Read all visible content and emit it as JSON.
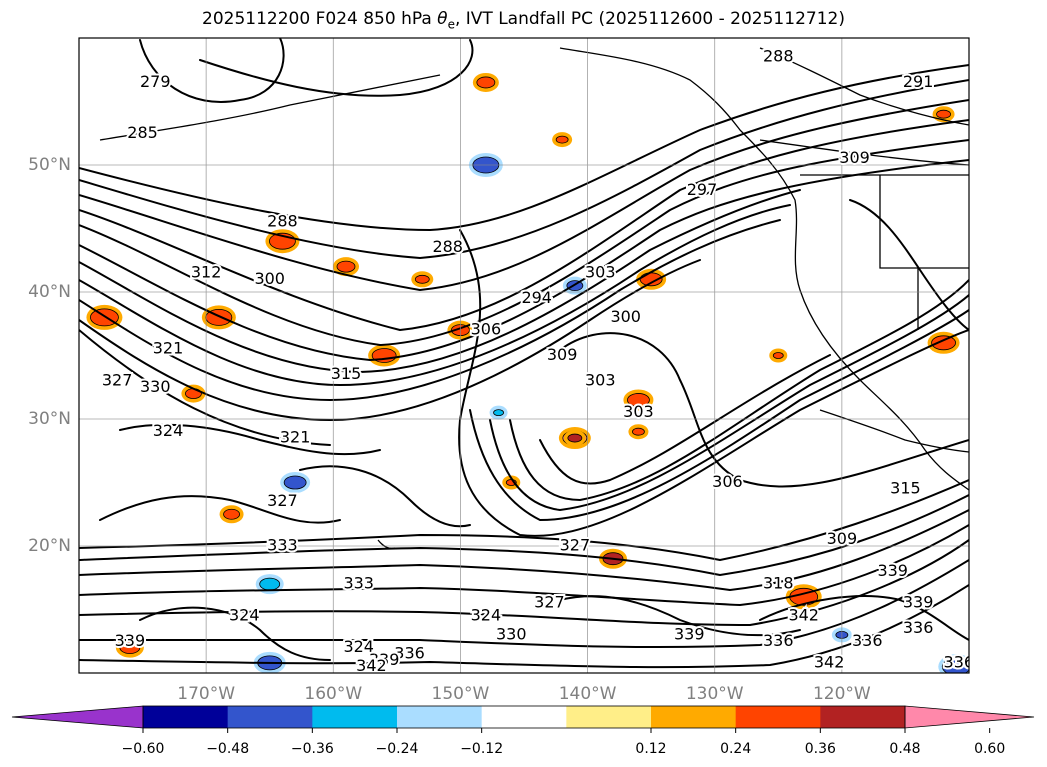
{
  "title_main": "2025112200 F024 850 hPa ",
  "title_sym": "θ",
  "title_sub": "e",
  "title_rest": ", IVT Landfall PC (2025112600 - 2025112712)",
  "chart_data": {
    "type": "heatmap",
    "title": "2025112200 F024 850 hPa θe, IVT Landfall PC (2025112600 - 2025112712)",
    "projection": "PlateCarree",
    "lon_range": [
      -180,
      -110
    ],
    "lat_range": [
      10,
      60
    ],
    "lat_ticks": [
      {
        "value": 50,
        "label": "50°N"
      },
      {
        "value": 40,
        "label": "40°N"
      },
      {
        "value": 30,
        "label": "30°N"
      },
      {
        "value": 20,
        "label": "20°N"
      }
    ],
    "lon_ticks": [
      {
        "value": -170,
        "label": "170°W"
      },
      {
        "value": -160,
        "label": "160°W"
      },
      {
        "value": -150,
        "label": "150°W"
      },
      {
        "value": -140,
        "label": "140°W"
      },
      {
        "value": -130,
        "label": "130°W"
      },
      {
        "value": -120,
        "label": "120°W"
      }
    ],
    "grid": true,
    "colorbar": {
      "ticks": [
        {
          "value": -0.6,
          "label": "−0.60"
        },
        {
          "value": -0.48,
          "label": "−0.48"
        },
        {
          "value": -0.36,
          "label": "−0.36"
        },
        {
          "value": -0.24,
          "label": "−0.24"
        },
        {
          "value": -0.12,
          "label": "−0.12"
        },
        {
          "value": 0.12,
          "label": "0.12"
        },
        {
          "value": 0.24,
          "label": "0.24"
        },
        {
          "value": 0.36,
          "label": "0.36"
        },
        {
          "value": 0.48,
          "label": "0.48"
        },
        {
          "value": 0.6,
          "label": "0.60"
        }
      ],
      "colors": [
        "#9933cc",
        "#000099",
        "#3355cc",
        "#00bbee",
        "#aaddff",
        "#ffffff",
        "#ffee88",
        "#ffaa00",
        "#ff4400",
        "#b22222",
        "#ff88aa"
      ],
      "extend": "both"
    },
    "theta_e_contours": [
      {
        "level": "279",
        "lon": -174,
        "lat": 56.5
      },
      {
        "level": "285",
        "lon": -175,
        "lat": 52.5
      },
      {
        "level": "288",
        "lon": -164,
        "lat": 45.5
      },
      {
        "level": "288",
        "lon": -151,
        "lat": 43.5
      },
      {
        "level": "288",
        "lon": -125,
        "lat": 58.5
      },
      {
        "level": "291",
        "lon": -114,
        "lat": 56.5
      },
      {
        "level": "294",
        "lon": -144,
        "lat": 39.5
      },
      {
        "level": "297",
        "lon": -131,
        "lat": 48
      },
      {
        "level": "300",
        "lon": -165,
        "lat": 41
      },
      {
        "level": "300",
        "lon": -137,
        "lat": 38
      },
      {
        "level": "303",
        "lon": -139,
        "lat": 41.5
      },
      {
        "level": "303",
        "lon": -139,
        "lat": 33
      },
      {
        "level": "303",
        "lon": -136,
        "lat": 30.5
      },
      {
        "level": "306",
        "lon": -148,
        "lat": 37
      },
      {
        "level": "306",
        "lon": -129,
        "lat": 25
      },
      {
        "level": "309",
        "lon": -142,
        "lat": 35
      },
      {
        "level": "309",
        "lon": -119,
        "lat": 50.5
      },
      {
        "level": "309",
        "lon": -120,
        "lat": 20.5
      },
      {
        "level": "312",
        "lon": -170,
        "lat": 41.5
      },
      {
        "level": "315",
        "lon": -159,
        "lat": 33.5
      },
      {
        "level": "315",
        "lon": -115,
        "lat": 24.5
      },
      {
        "level": "318",
        "lon": -125,
        "lat": 17
      },
      {
        "level": "321",
        "lon": -163,
        "lat": 28.5
      },
      {
        "level": "321",
        "lon": -173,
        "lat": 35.5
      },
      {
        "level": "324",
        "lon": -173,
        "lat": 29
      },
      {
        "level": "324",
        "lon": -167,
        "lat": 14.5
      },
      {
        "level": "324",
        "lon": -148,
        "lat": 14.5
      },
      {
        "level": "324",
        "lon": -158,
        "lat": 12
      },
      {
        "level": "327",
        "lon": -177,
        "lat": 33
      },
      {
        "level": "327",
        "lon": -164,
        "lat": 23.5
      },
      {
        "level": "327",
        "lon": -141,
        "lat": 20
      },
      {
        "level": "327",
        "lon": -143,
        "lat": 15.5
      },
      {
        "level": "330",
        "lon": -174,
        "lat": 32.5
      },
      {
        "level": "330",
        "lon": -146,
        "lat": 13
      },
      {
        "level": "333",
        "lon": -164,
        "lat": 20
      },
      {
        "level": "333",
        "lon": -158,
        "lat": 17
      },
      {
        "level": "336",
        "lon": -154,
        "lat": 11.5
      },
      {
        "level": "336",
        "lon": -125,
        "lat": 12.5
      },
      {
        "level": "336",
        "lon": -118,
        "lat": 12.5
      },
      {
        "level": "336",
        "lon": -114,
        "lat": 13.5
      },
      {
        "level": "336",
        "lon": -110.8,
        "lat": 10.8
      },
      {
        "level": "339",
        "lon": -176,
        "lat": 12.5
      },
      {
        "level": "339",
        "lon": -156,
        "lat": 11
      },
      {
        "level": "339",
        "lon": -132,
        "lat": 13
      },
      {
        "level": "339",
        "lon": -116,
        "lat": 18
      },
      {
        "level": "339",
        "lon": -114,
        "lat": 15.5
      },
      {
        "level": "342",
        "lon": -123,
        "lat": 14.5
      },
      {
        "level": "342",
        "lon": -121,
        "lat": 10.8
      },
      {
        "level": "342",
        "lon": -157,
        "lat": 10.5
      }
    ],
    "pc_regions": [
      {
        "lon": -141,
        "lat": 28.5,
        "color": "#ff88aa"
      },
      {
        "lon": -141,
        "lat": 28.5,
        "color": "#b22222"
      },
      {
        "lon": -150,
        "lat": 37,
        "color": "#ff4400"
      },
      {
        "lon": -169,
        "lat": 38,
        "color": "#ff4400"
      },
      {
        "lon": -135,
        "lat": 41,
        "color": "#ff4400"
      },
      {
        "lon": -142,
        "lat": 52,
        "color": "#ff4400"
      },
      {
        "lon": -123,
        "lat": 16,
        "color": "#ff4400"
      },
      {
        "lon": -171,
        "lat": 32,
        "color": "#ff4400"
      },
      {
        "lon": -138,
        "lat": 19,
        "color": "#b22222"
      },
      {
        "lon": -146,
        "lat": 25,
        "color": "#ff4400"
      },
      {
        "lon": -156,
        "lat": 35,
        "color": "#ff4400"
      },
      {
        "lon": -153,
        "lat": 41,
        "color": "#ff4400"
      },
      {
        "lon": -159,
        "lat": 42,
        "color": "#ff4400"
      },
      {
        "lon": -164,
        "lat": 44,
        "color": "#ff4400"
      },
      {
        "lon": -136,
        "lat": 31.5,
        "color": "#ff4400"
      },
      {
        "lon": -136,
        "lat": 29,
        "color": "#ff4400"
      },
      {
        "lon": -178,
        "lat": 38,
        "color": "#ff4400"
      },
      {
        "lon": -168,
        "lat": 22.5,
        "color": "#ff4400"
      },
      {
        "lon": -176,
        "lat": 12,
        "color": "#ff4400"
      },
      {
        "lon": -125,
        "lat": 35,
        "color": "#ff4400"
      },
      {
        "lon": -112,
        "lat": 36,
        "color": "#ff4400"
      },
      {
        "lon": -112,
        "lat": 54,
        "color": "#ff4400"
      },
      {
        "lon": -148,
        "lat": 56.5,
        "color": "#ff4400"
      },
      {
        "lon": -148,
        "lat": 50,
        "color": "#3355cc"
      },
      {
        "lon": -163,
        "lat": 25,
        "color": "#3355cc"
      },
      {
        "lon": -120,
        "lat": 13,
        "color": "#3355cc"
      },
      {
        "lon": -111,
        "lat": 10.5,
        "color": "#3355cc"
      },
      {
        "lon": -141,
        "lat": 40.5,
        "color": "#3355cc"
      },
      {
        "lon": -165,
        "lat": 17,
        "color": "#00bbee"
      },
      {
        "lon": -147,
        "lat": 30.5,
        "color": "#00bbee"
      },
      {
        "lon": -165,
        "lat": 10.8,
        "color": "#3355cc"
      }
    ]
  }
}
